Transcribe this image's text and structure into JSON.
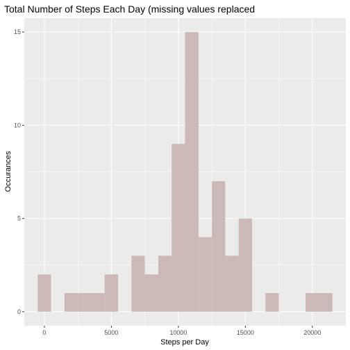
{
  "chart_data": {
    "type": "bar",
    "subtype": "histogram",
    "title": "Total Number of Steps Each Day (missing values replaced",
    "xlabel": "Steps per Day",
    "ylabel": "Occurances",
    "xlim": [
      -1500,
      22500
    ],
    "ylim": [
      -0.75,
      15.75
    ],
    "x_ticks": [
      0,
      5000,
      10000,
      15000,
      20000
    ],
    "x_tick_labels": [
      "0",
      "5000",
      "10000",
      "15000",
      "20000"
    ],
    "y_ticks": [
      0,
      5,
      10,
      15
    ],
    "y_tick_labels": [
      "0",
      "5",
      "10",
      "15"
    ],
    "bin_width": 1000,
    "bin_centers": [
      0,
      2000,
      3000,
      4000,
      5000,
      7000,
      8000,
      9000,
      10000,
      11000,
      12000,
      13000,
      14000,
      15000,
      17000,
      20000,
      21000
    ],
    "values": [
      2,
      1,
      1,
      1,
      2,
      3,
      2,
      3,
      9,
      15,
      4,
      7,
      3,
      5,
      1,
      1,
      1
    ],
    "grid": true,
    "legend": "none",
    "colors": {
      "panel_background": "#ebebeb",
      "grid": "#ffffff",
      "bar_fill": "#cdb8b8"
    }
  }
}
